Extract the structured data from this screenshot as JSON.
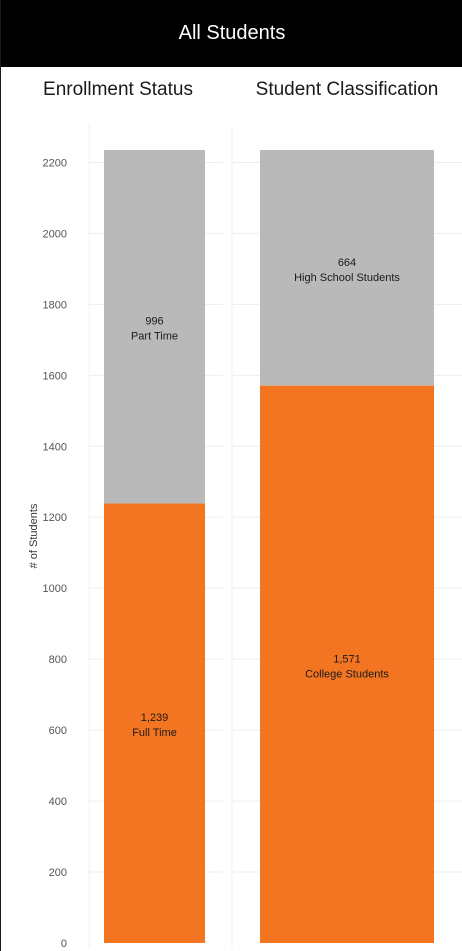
{
  "header": {
    "title": "All Students"
  },
  "colors": {
    "header_bg": "#000000",
    "header_text": "#ffffff",
    "segment_bottom": "#f47521",
    "segment_top": "#b9b9b9",
    "grid": "#ededed"
  },
  "chart_data": [
    {
      "type": "bar",
      "stacked": true,
      "title": "Enrollment Status",
      "ylabel": "# of Students",
      "ylim": [
        0,
        2300
      ],
      "yticks": [
        0,
        200,
        400,
        600,
        800,
        1000,
        1200,
        1400,
        1600,
        1800,
        2000,
        2200
      ],
      "grid": true,
      "series": [
        {
          "name": "Full Time",
          "value": 1239,
          "value_label": "1,239",
          "color": "#f47521"
        },
        {
          "name": "Part Time",
          "value": 996,
          "value_label": "996",
          "color": "#b9b9b9"
        }
      ]
    },
    {
      "type": "bar",
      "stacked": true,
      "title": "Student Classification",
      "ylim": [
        0,
        2300
      ],
      "grid": true,
      "series": [
        {
          "name": "College Students",
          "value": 1571,
          "value_label": "1,571",
          "color": "#f47521"
        },
        {
          "name": "High School Students",
          "value": 664,
          "value_label": "664",
          "color": "#b9b9b9"
        }
      ]
    }
  ]
}
